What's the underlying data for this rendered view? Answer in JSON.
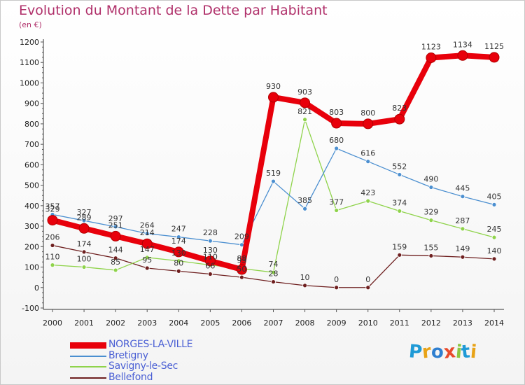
{
  "header": {
    "title": "Evolution du Montant de la Dette par Habitant",
    "unit": "(en €)"
  },
  "logo": {
    "text": "Proxiti"
  },
  "chart_data": {
    "type": "line",
    "title": "Evolution du Montant de la Dette par Habitant",
    "ylabel": "(en €)",
    "xlabel": "",
    "x": [
      "2000",
      "2001",
      "2002",
      "2003",
      "2004",
      "2005",
      "2006",
      "2007",
      "2008",
      "2009",
      "2010",
      "2011",
      "2012",
      "2013",
      "2014"
    ],
    "ylim": [
      -100,
      1200
    ],
    "yticks": [
      -100,
      0,
      100,
      200,
      300,
      400,
      500,
      600,
      700,
      800,
      900,
      1000,
      1100,
      1200
    ],
    "grid": false,
    "legend": "bottom-left",
    "series": [
      {
        "name": "NORGES-LA-VILLE",
        "color": "#e8000b",
        "values": [
          329,
          289,
          251,
          214,
          174,
          130,
          88,
          930,
          903,
          803,
          800,
          823,
          1123,
          1134,
          1125
        ]
      },
      {
        "name": "Bretigny",
        "color": "#4b8fd0",
        "values": [
          357,
          327,
          297,
          264,
          247,
          228,
          209,
          519,
          385,
          680,
          616,
          552,
          490,
          445,
          405
        ]
      },
      {
        "name": "Savigny-le-Sec",
        "color": "#8fd34b",
        "values": [
          110,
          100,
          85,
          147,
          130,
          110,
          93,
          74,
          821,
          377,
          423,
          374,
          329,
          287,
          245
        ]
      },
      {
        "name": "Bellefond",
        "color": "#6e1f1f",
        "values": [
          206,
          174,
          144,
          95,
          80,
          66,
          50,
          28,
          10,
          0,
          0,
          159,
          155,
          149,
          140
        ]
      }
    ]
  }
}
